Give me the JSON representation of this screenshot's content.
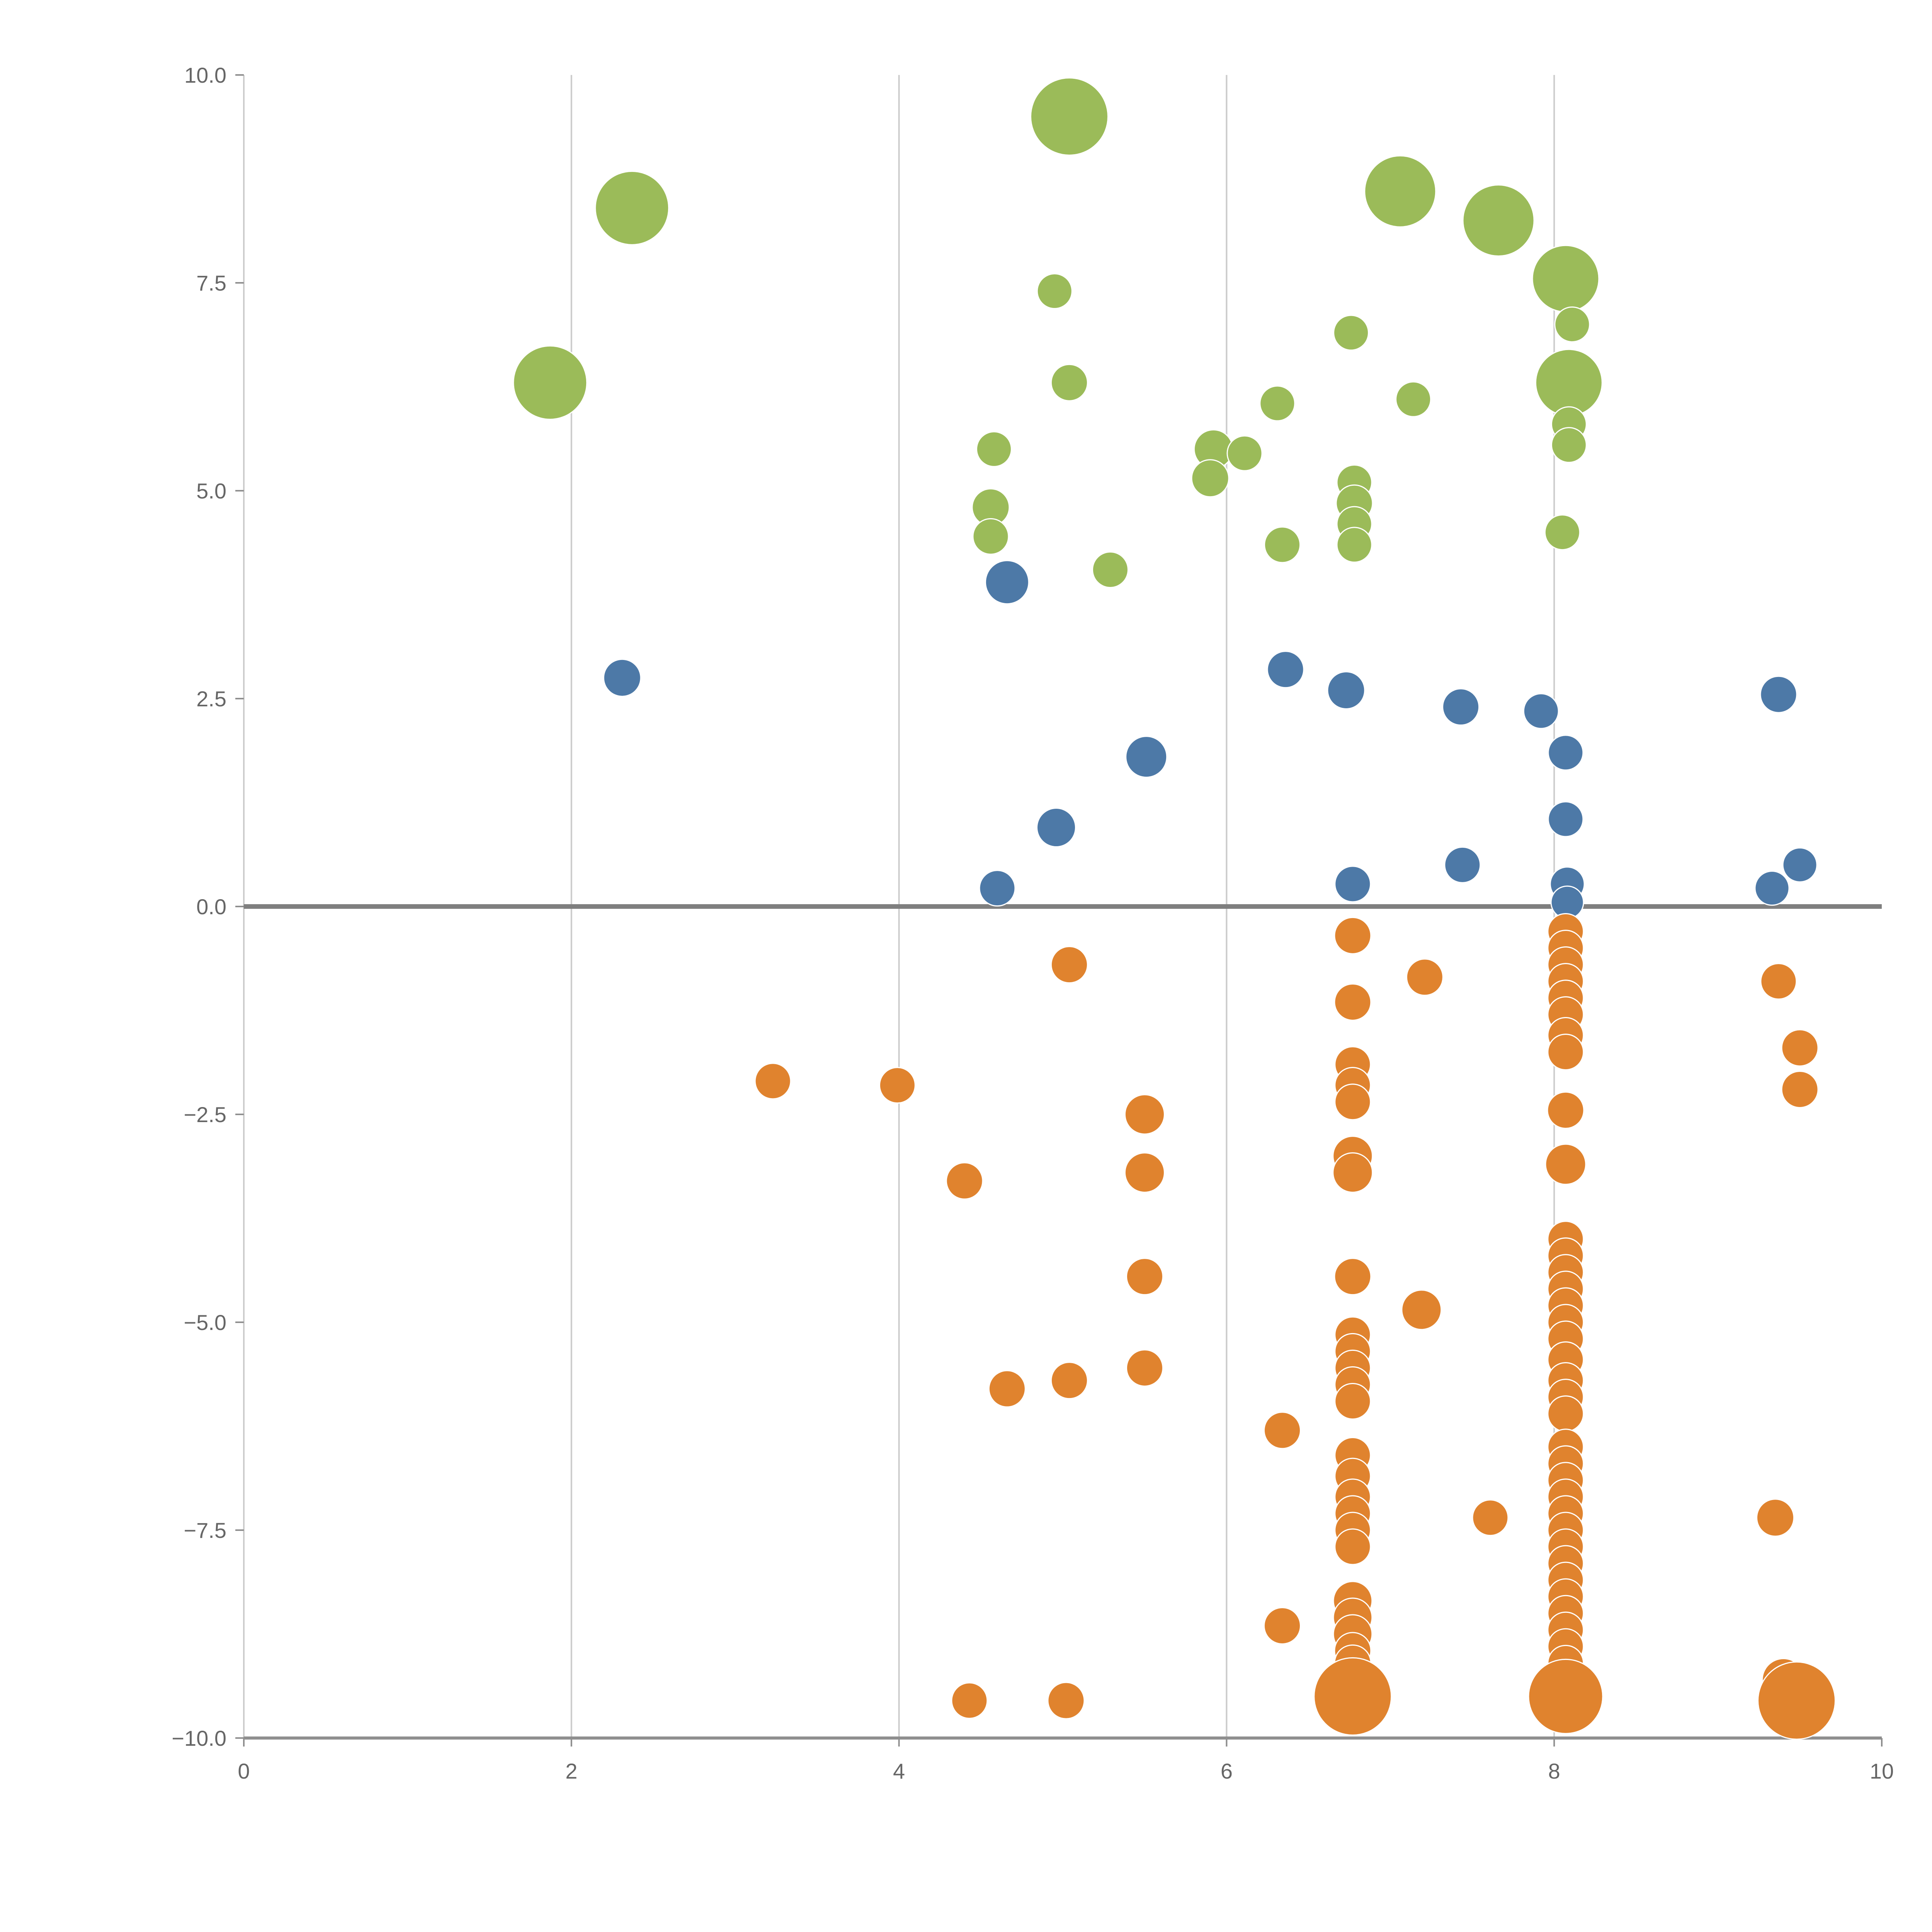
{
  "page": {
    "background": "#ffffff",
    "title": ""
  },
  "chart_data": {
    "type": "scatter",
    "title": "",
    "subtitle": "",
    "xlabel": "",
    "ylabel": "",
    "xlim": [
      0,
      10
    ],
    "ylim": [
      -10,
      10
    ],
    "legend": "none",
    "grid": "vertical gridlines at x=2,4,6,8 plus dark horizontal zero line",
    "x_tick_values": [
      0,
      2,
      4,
      6,
      8,
      10
    ],
    "x_tick_labels": [
      "0",
      "2",
      "4",
      "6",
      "8",
      "10"
    ],
    "y_tick_values": [
      10,
      7.5,
      5,
      2.5,
      0,
      -2.5,
      -5,
      -7.5,
      -10
    ],
    "y_tick_labels": [
      "10.0",
      "7.5",
      "5.0",
      "2.5",
      "0.0",
      "−2.5",
      "−5.0",
      "−7.5",
      "−10.0"
    ],
    "gridlines_x": [
      2,
      4,
      6,
      8
    ],
    "zero_line_y": 0,
    "style": {
      "grid_color": "#cccccc",
      "zero_line_color": "#7f7f7f",
      "axis_color": "#8f8f8f",
      "tick_label_color": "#666666",
      "marker_edge": "#ffffff",
      "green": "#9bbb59",
      "blue": "#4d79a7",
      "orange": "#e0832e"
    },
    "series": [
      {
        "name": "green",
        "color": "#9bbb59",
        "points": [
          [
            1.87,
            6.3,
            95
          ],
          [
            2.37,
            8.4,
            95
          ],
          [
            5.04,
            9.5,
            100
          ],
          [
            4.95,
            7.4,
            45
          ],
          [
            5.04,
            6.3,
            47
          ],
          [
            4.58,
            5.5,
            45
          ],
          [
            4.56,
            4.8,
            48
          ],
          [
            4.56,
            4.45,
            46
          ],
          [
            5.29,
            4.05,
            46
          ],
          [
            5.92,
            5.5,
            50
          ],
          [
            5.9,
            5.15,
            48
          ],
          [
            6.11,
            5.45,
            45
          ],
          [
            6.31,
            6.05,
            45
          ],
          [
            6.34,
            4.35,
            46
          ],
          [
            6.76,
            6.9,
            45
          ],
          [
            6.78,
            5.1,
            45
          ],
          [
            6.78,
            4.85,
            47
          ],
          [
            6.78,
            4.6,
            45
          ],
          [
            6.78,
            4.35,
            45
          ],
          [
            7.06,
            8.6,
            92
          ],
          [
            7.14,
            6.1,
            45
          ],
          [
            7.66,
            8.25,
            92
          ],
          [
            8.07,
            7.55,
            86
          ],
          [
            8.11,
            7.0,
            45
          ],
          [
            8.09,
            6.3,
            86
          ],
          [
            8.09,
            5.8,
            45
          ],
          [
            8.09,
            5.55,
            45
          ],
          [
            8.05,
            4.5,
            45
          ]
        ]
      },
      {
        "name": "blue",
        "color": "#4d79a7",
        "points": [
          [
            2.31,
            2.75,
            48
          ],
          [
            4.66,
            3.9,
            56
          ],
          [
            4.6,
            0.22,
            46
          ],
          [
            4.96,
            0.95,
            50
          ],
          [
            5.51,
            1.8,
            53
          ],
          [
            6.36,
            2.85,
            47
          ],
          [
            6.73,
            2.6,
            48
          ],
          [
            6.77,
            0.27,
            46
          ],
          [
            7.43,
            2.4,
            47
          ],
          [
            7.44,
            0.5,
            46
          ],
          [
            7.92,
            2.35,
            45
          ],
          [
            8.07,
            1.85,
            45
          ],
          [
            8.07,
            1.05,
            45
          ],
          [
            8.08,
            0.27,
            44
          ],
          [
            8.08,
            0.05,
            42
          ],
          [
            9.37,
            2.55,
            47
          ],
          [
            9.33,
            0.22,
            44
          ],
          [
            9.5,
            0.5,
            44
          ]
        ]
      },
      {
        "name": "orange",
        "color": "#e0832e",
        "points": [
          [
            3.23,
            -2.1,
            46
          ],
          [
            3.99,
            -2.15,
            46
          ],
          [
            4.4,
            -3.3,
            47
          ],
          [
            4.43,
            -9.55,
            46
          ],
          [
            4.66,
            -5.8,
            47
          ],
          [
            5.04,
            -0.7,
            47
          ],
          [
            5.04,
            -5.7,
            47
          ],
          [
            5.02,
            -9.55,
            47
          ],
          [
            5.5,
            -2.5,
            51
          ],
          [
            5.5,
            -3.2,
            51
          ],
          [
            5.5,
            -4.45,
            47
          ],
          [
            5.5,
            -5.55,
            47
          ],
          [
            6.34,
            -6.3,
            47
          ],
          [
            6.34,
            -8.65,
            47
          ],
          [
            6.77,
            -0.35,
            47
          ],
          [
            6.77,
            -1.15,
            47
          ],
          [
            6.77,
            -1.9,
            46
          ],
          [
            6.77,
            -2.15,
            46
          ],
          [
            6.77,
            -2.35,
            46
          ],
          [
            6.77,
            -3.0,
            51
          ],
          [
            6.77,
            -3.2,
            51
          ],
          [
            6.77,
            -4.45,
            47
          ],
          [
            6.77,
            -5.15,
            46
          ],
          [
            6.77,
            -5.35,
            46
          ],
          [
            6.77,
            -5.55,
            46
          ],
          [
            6.77,
            -5.75,
            46
          ],
          [
            6.77,
            -5.95,
            46
          ],
          [
            6.77,
            -6.6,
            46
          ],
          [
            6.77,
            -6.85,
            46
          ],
          [
            6.77,
            -7.1,
            46
          ],
          [
            6.77,
            -7.3,
            46
          ],
          [
            6.77,
            -7.5,
            46
          ],
          [
            6.77,
            -7.7,
            46
          ],
          [
            6.77,
            -8.35,
            50
          ],
          [
            6.77,
            -8.55,
            50
          ],
          [
            6.77,
            -8.75,
            50
          ],
          [
            6.77,
            -8.95,
            47
          ],
          [
            6.77,
            -9.1,
            47
          ],
          [
            6.77,
            -9.5,
            100
          ],
          [
            7.21,
            -0.85,
            47
          ],
          [
            7.19,
            -4.85,
            51
          ],
          [
            7.61,
            -7.35,
            46
          ],
          [
            8.07,
            -0.3,
            46
          ],
          [
            8.07,
            -0.5,
            46
          ],
          [
            8.07,
            -0.7,
            46
          ],
          [
            8.07,
            -0.9,
            46
          ],
          [
            8.07,
            -1.1,
            46
          ],
          [
            8.07,
            -1.3,
            46
          ],
          [
            8.07,
            -1.55,
            46
          ],
          [
            8.07,
            -1.75,
            46
          ],
          [
            8.07,
            -2.45,
            47
          ],
          [
            8.07,
            -3.1,
            52
          ],
          [
            8.07,
            -4.0,
            46
          ],
          [
            8.07,
            -4.2,
            46
          ],
          [
            8.07,
            -4.4,
            46
          ],
          [
            8.07,
            -4.6,
            46
          ],
          [
            8.07,
            -4.8,
            46
          ],
          [
            8.07,
            -5.0,
            46
          ],
          [
            8.07,
            -5.2,
            46
          ],
          [
            8.07,
            -5.45,
            46
          ],
          [
            8.07,
            -5.7,
            46
          ],
          [
            8.07,
            -5.9,
            46
          ],
          [
            8.07,
            -6.1,
            46
          ],
          [
            8.07,
            -6.5,
            46
          ],
          [
            8.07,
            -6.7,
            46
          ],
          [
            8.07,
            -6.9,
            46
          ],
          [
            8.07,
            -7.1,
            46
          ],
          [
            8.07,
            -7.3,
            46
          ],
          [
            8.07,
            -7.5,
            46
          ],
          [
            8.07,
            -7.7,
            46
          ],
          [
            8.07,
            -7.9,
            46
          ],
          [
            8.07,
            -8.1,
            46
          ],
          [
            8.07,
            -8.3,
            46
          ],
          [
            8.07,
            -8.5,
            46
          ],
          [
            8.07,
            -8.7,
            46
          ],
          [
            8.07,
            -8.9,
            46
          ],
          [
            8.07,
            -9.1,
            46
          ],
          [
            8.07,
            -9.5,
            96
          ],
          [
            9.37,
            -0.9,
            46
          ],
          [
            9.5,
            -1.7,
            47
          ],
          [
            9.5,
            -2.2,
            47
          ],
          [
            9.35,
            -7.35,
            48
          ],
          [
            9.4,
            -9.3,
            55
          ],
          [
            9.48,
            -9.55,
            100
          ]
        ]
      }
    ]
  }
}
